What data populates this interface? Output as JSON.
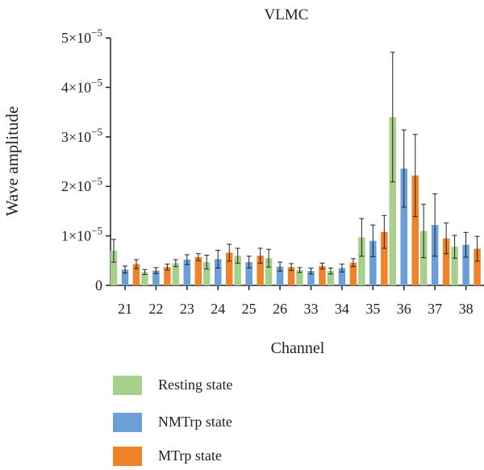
{
  "chart_data": {
    "type": "bar",
    "title": "VLMC",
    "xlabel": "Channel",
    "ylabel": "Wave amplitude",
    "ylim": [
      0,
      5e-05
    ],
    "y_ticks": [
      {
        "value": 0,
        "mantissa": "0",
        "exp": ""
      },
      {
        "value": 1e-05,
        "mantissa": "1×10",
        "exp": "−5"
      },
      {
        "value": 2e-05,
        "mantissa": "2×10",
        "exp": "−5"
      },
      {
        "value": 3e-05,
        "mantissa": "3×10",
        "exp": "−5"
      },
      {
        "value": 4e-05,
        "mantissa": "4×10",
        "exp": "−5"
      },
      {
        "value": 5e-05,
        "mantissa": "5×10",
        "exp": "−5"
      }
    ],
    "categories": [
      "21",
      "22",
      "23",
      "24",
      "25",
      "26",
      "33",
      "34",
      "35",
      "36",
      "37",
      "38"
    ],
    "series": [
      {
        "name": "Resting state",
        "color": "#a8d08d",
        "values": [
          7e-06,
          2.7e-06,
          4.5e-06,
          4.7e-06,
          6e-06,
          5.5e-06,
          3.1e-06,
          2.9e-06,
          9.7e-06,
          3.4e-05,
          1.1e-05,
          7.8e-06
        ],
        "errors": [
          2.3e-06,
          5e-07,
          7e-07,
          1.4e-06,
          1.5e-06,
          1.8e-06,
          5e-07,
          6e-07,
          3.8e-06,
          1.31e-05,
          5.4e-06,
          2.3e-06
        ]
      },
      {
        "name": "NMTrp state",
        "color": "#6a9fd8",
        "values": [
          3.2e-06,
          3e-06,
          5.2e-06,
          5.3e-06,
          4.7e-06,
          3.8e-06,
          2.9e-06,
          3.5e-06,
          9e-06,
          2.36e-05,
          1.22e-05,
          8.2e-06
        ],
        "errors": [
          7e-07,
          6e-07,
          1e-06,
          1.8e-06,
          1.2e-06,
          9e-07,
          6e-07,
          8e-07,
          3.2e-06,
          7.8e-06,
          6.3e-06,
          2.5e-06
        ]
      },
      {
        "name": "MTrp state",
        "color": "#f0832a",
        "values": [
          4.3e-06,
          3.7e-06,
          5.7e-06,
          6.6e-06,
          6e-06,
          3.7e-06,
          3.9e-06,
          4.6e-06,
          1.08e-05,
          2.22e-05,
          9.5e-06,
          7.4e-06
        ],
        "errors": [
          9e-07,
          6e-07,
          7e-07,
          1.7e-06,
          1.5e-06,
          7e-07,
          6e-07,
          8e-07,
          3.3e-06,
          8.3e-06,
          3.1e-06,
          2.5e-06
        ]
      }
    ],
    "error_bars": true,
    "grid": false,
    "legend_position": "bottom"
  }
}
